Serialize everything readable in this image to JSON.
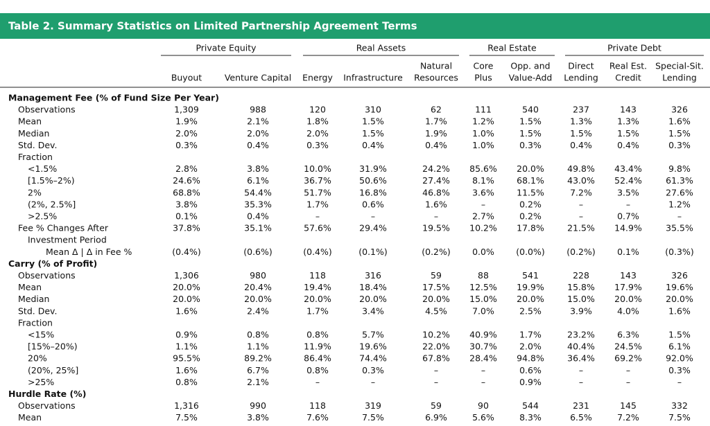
{
  "title": "Table 2. Summary Statistics on Limited Partnership Agreement Terms",
  "groups": [
    {
      "label": "Private Equity",
      "span": [
        0,
        1
      ]
    },
    {
      "label": "Real Assets",
      "span": [
        2,
        4
      ]
    },
    {
      "label": "Real Estate",
      "span": [
        5,
        6
      ]
    },
    {
      "label": "Private Debt",
      "span": [
        7,
        9
      ]
    }
  ],
  "columns": [
    [
      "Buyout"
    ],
    [
      "Venture Capital"
    ],
    [
      "Energy"
    ],
    [
      "Infrastructure"
    ],
    [
      "Natural",
      "Resources"
    ],
    [
      "Core",
      "Plus"
    ],
    [
      "Opp. and",
      "Value-Add"
    ],
    [
      "Direct",
      "Lending"
    ],
    [
      "Real Est.",
      "Credit"
    ],
    [
      "Special-Sit.",
      "Lending"
    ]
  ],
  "sections": [
    {
      "title": "Management Fee (% of Fund Size Per Year)",
      "rows": [
        {
          "label": [
            "Observations"
          ],
          "cells": [
            "1,309",
            "988",
            "120",
            "310",
            "62",
            "111",
            "540",
            "237",
            "143",
            "326"
          ]
        },
        {
          "label": [
            "Mean"
          ],
          "cells": [
            "1.9%",
            "2.1%",
            "1.8%",
            "1.5%",
            "1.7%",
            "1.2%",
            "1.5%",
            "1.3%",
            "1.3%",
            "1.6%"
          ]
        },
        {
          "label": [
            "Median"
          ],
          "cells": [
            "2.0%",
            "2.0%",
            "2.0%",
            "1.5%",
            "1.9%",
            "1.0%",
            "1.5%",
            "1.5%",
            "1.5%",
            "1.5%"
          ]
        },
        {
          "label": [
            "Std. Dev."
          ],
          "cells": [
            "0.3%",
            "0.4%",
            "0.3%",
            "0.4%",
            "0.4%",
            "1.0%",
            "0.3%",
            "0.4%",
            "0.4%",
            "0.3%"
          ]
        },
        {
          "label": [
            "Fraction"
          ],
          "rows": [
            {
              "label": [
                "<1.5%"
              ],
              "cells": [
                "2.8%",
                "3.8%",
                "10.0%",
                "31.9%",
                "24.2%",
                "85.6%",
                "20.0%",
                "49.8%",
                "43.4%",
                "9.8%"
              ]
            },
            {
              "label": [
                "[1.5%–2%)"
              ],
              "cells": [
                "24.6%",
                "6.1%",
                "36.7%",
                "50.6%",
                "27.4%",
                "8.1%",
                "68.1%",
                "43.0%",
                "52.4%",
                "61.3%"
              ]
            },
            {
              "label": [
                "2%"
              ],
              "cells": [
                "68.8%",
                "54.4%",
                "51.7%",
                "16.8%",
                "46.8%",
                "3.6%",
                "11.5%",
                "7.2%",
                "3.5%",
                "27.6%"
              ]
            },
            {
              "label": [
                "(2%, 2.5%]"
              ],
              "cells": [
                "3.8%",
                "35.3%",
                "1.7%",
                "0.6%",
                "1.6%",
                "–",
                "0.2%",
                "–",
                "–",
                "1.2%"
              ]
            },
            {
              "label": [
                ">2.5%"
              ],
              "cells": [
                "0.1%",
                "0.4%",
                "–",
                "–",
                "–",
                "2.7%",
                "0.2%",
                "–",
                "0.7%",
                "–"
              ]
            }
          ]
        },
        {
          "label": [
            "Fee % Changes After",
            "Investment Period"
          ],
          "cells": [
            "37.8%",
            "35.1%",
            "57.6%",
            "29.4%",
            "19.5%",
            "10.2%",
            "17.8%",
            "21.5%",
            "14.9%",
            "35.5%"
          ],
          "rows": [
            {
              "label": [
                "Mean Δ | Δ in Fee %"
              ],
              "cells": [
                "(0.4%)",
                "(0.6%)",
                "(0.4%)",
                "(0.1%)",
                "(0.2%)",
                "0.0%",
                "(0.0%)",
                "(0.2%)",
                "0.1%",
                "(0.3%)"
              ]
            }
          ]
        }
      ]
    },
    {
      "title": "Carry (% of Profit)",
      "rows": [
        {
          "label": [
            "Observations"
          ],
          "cells": [
            "1,306",
            "980",
            "118",
            "316",
            "59",
            "88",
            "541",
            "228",
            "143",
            "326"
          ]
        },
        {
          "label": [
            "Mean"
          ],
          "cells": [
            "20.0%",
            "20.4%",
            "19.4%",
            "18.4%",
            "17.5%",
            "12.5%",
            "19.9%",
            "15.8%",
            "17.9%",
            "19.6%"
          ]
        },
        {
          "label": [
            "Median"
          ],
          "cells": [
            "20.0%",
            "20.0%",
            "20.0%",
            "20.0%",
            "20.0%",
            "15.0%",
            "20.0%",
            "15.0%",
            "20.0%",
            "20.0%"
          ]
        },
        {
          "label": [
            "Std. Dev."
          ],
          "cells": [
            "1.6%",
            "2.4%",
            "1.7%",
            "3.4%",
            "4.5%",
            "7.0%",
            "2.5%",
            "3.9%",
            "4.0%",
            "1.6%"
          ]
        },
        {
          "label": [
            "Fraction"
          ],
          "rows": [
            {
              "label": [
                "<15%"
              ],
              "cells": [
                "0.9%",
                "0.8%",
                "0.8%",
                "5.7%",
                "10.2%",
                "40.9%",
                "1.7%",
                "23.2%",
                "6.3%",
                "1.5%"
              ]
            },
            {
              "label": [
                "[15%–20%)"
              ],
              "cells": [
                "1.1%",
                "1.1%",
                "11.9%",
                "19.6%",
                "22.0%",
                "30.7%",
                "2.0%",
                "40.4%",
                "24.5%",
                "6.1%"
              ]
            },
            {
              "label": [
                "20%"
              ],
              "cells": [
                "95.5%",
                "89.2%",
                "86.4%",
                "74.4%",
                "67.8%",
                "28.4%",
                "94.8%",
                "36.4%",
                "69.2%",
                "92.0%"
              ]
            },
            {
              "label": [
                "(20%, 25%]"
              ],
              "cells": [
                "1.6%",
                "6.7%",
                "0.8%",
                "0.3%",
                "–",
                "–",
                "0.6%",
                "–",
                "–",
                "0.3%"
              ]
            },
            {
              "label": [
                ">25%"
              ],
              "cells": [
                "0.8%",
                "2.1%",
                "–",
                "–",
                "–",
                "–",
                "0.9%",
                "–",
                "–",
                "–"
              ]
            }
          ]
        }
      ]
    },
    {
      "title": "Hurdle Rate (%)",
      "rows": [
        {
          "label": [
            "Observations"
          ],
          "cells": [
            "1,316",
            "990",
            "118",
            "319",
            "59",
            "90",
            "544",
            "231",
            "145",
            "332"
          ]
        },
        {
          "label": [
            "Mean"
          ],
          "cells": [
            "7.5%",
            "3.8%",
            "7.6%",
            "7.5%",
            "6.9%",
            "5.6%",
            "8.3%",
            "6.5%",
            "7.2%",
            "7.5%"
          ]
        }
      ]
    }
  ]
}
